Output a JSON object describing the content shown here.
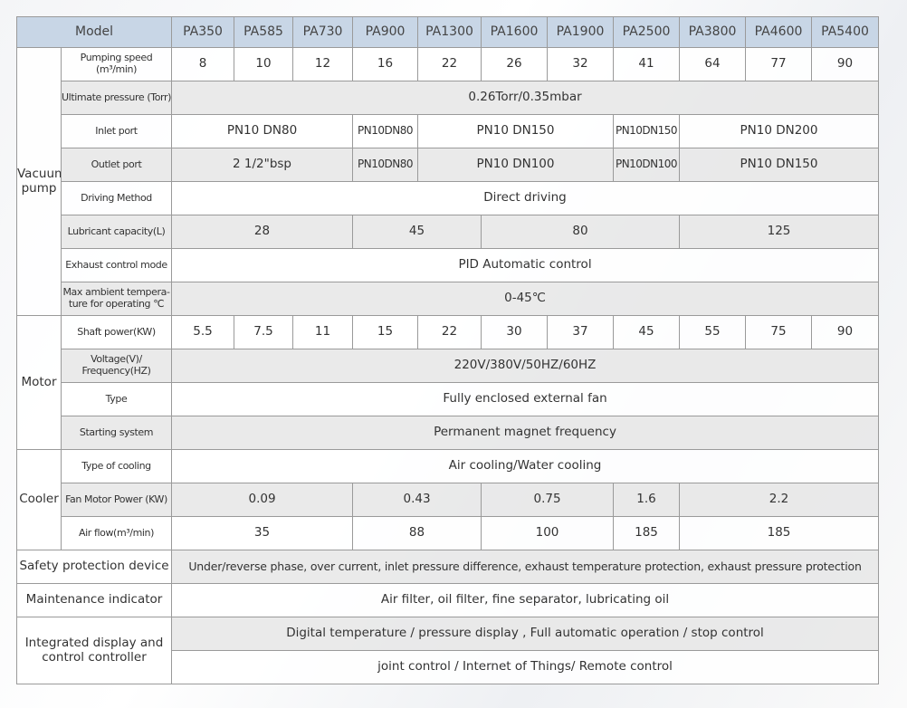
{
  "header": {
    "model_label": "Model",
    "models": [
      "PA350",
      "PA585",
      "PA730",
      "PA900",
      "PA1300",
      "PA1600",
      "PA1900",
      "PA2500",
      "PA3800",
      "PA4600",
      "PA5400"
    ]
  },
  "groups": [
    {
      "label": "Vacuum pump",
      "rows": [
        {
          "param": "Pumping speed (m³/min)",
          "cells": [
            {
              "v": "8",
              "span": 1
            },
            {
              "v": "10",
              "span": 1
            },
            {
              "v": "12",
              "span": 1
            },
            {
              "v": "16",
              "span": 1
            },
            {
              "v": "22",
              "span": 1
            },
            {
              "v": "26",
              "span": 1
            },
            {
              "v": "32",
              "span": 1
            },
            {
              "v": "41",
              "span": 1
            },
            {
              "v": "64",
              "span": 1
            },
            {
              "v": "77",
              "span": 1
            },
            {
              "v": "90",
              "span": 1
            }
          ]
        },
        {
          "param": "Ultimate pressure (Torr)",
          "cells": [
            {
              "v": "0.26Torr/0.35mbar",
              "span": 11
            }
          ]
        },
        {
          "param": "Inlet port",
          "cells": [
            {
              "v": "PN10 DN80",
              "span": 3
            },
            {
              "v": "PN10DN80",
              "span": 1,
              "small": true
            },
            {
              "v": "PN10 DN150",
              "span": 3
            },
            {
              "v": "PN10DN150",
              "span": 1,
              "small": true
            },
            {
              "v": "PN10 DN200",
              "span": 3
            }
          ]
        },
        {
          "param": "Outlet port",
          "cells": [
            {
              "v": "2 1/2\"bsp",
              "span": 3
            },
            {
              "v": "PN10DN80",
              "span": 1,
              "small": true
            },
            {
              "v": "PN10 DN100",
              "span": 3
            },
            {
              "v": "PN10DN100",
              "span": 1,
              "small": true
            },
            {
              "v": "PN10 DN150",
              "span": 3
            }
          ]
        },
        {
          "param": "Driving Method",
          "cells": [
            {
              "v": "Direct driving",
              "span": 11
            }
          ]
        },
        {
          "param": "Lubricant capacity(L)",
          "cells": [
            {
              "v": "28",
              "span": 3
            },
            {
              "v": "45",
              "span": 2
            },
            {
              "v": "80",
              "span": 3
            },
            {
              "v": "125",
              "span": 3
            }
          ]
        },
        {
          "param": "Exhaust control mode",
          "cells": [
            {
              "v": "PID Automatic control",
              "span": 11
            }
          ]
        },
        {
          "param": "Max ambient tempera-ture for operating ℃",
          "cells": [
            {
              "v": "0-45℃",
              "span": 11
            }
          ]
        }
      ]
    },
    {
      "label": "Motor",
      "rows": [
        {
          "param": "Shaft power(KW)",
          "cells": [
            {
              "v": "5.5",
              "span": 1
            },
            {
              "v": "7.5",
              "span": 1
            },
            {
              "v": "11",
              "span": 1
            },
            {
              "v": "15",
              "span": 1
            },
            {
              "v": "22",
              "span": 1
            },
            {
              "v": "30",
              "span": 1
            },
            {
              "v": "37",
              "span": 1
            },
            {
              "v": "45",
              "span": 1
            },
            {
              "v": "55",
              "span": 1
            },
            {
              "v": "75",
              "span": 1
            },
            {
              "v": "90",
              "span": 1
            }
          ]
        },
        {
          "param": "Voltage(V)/ Frequency(HZ)",
          "cells": [
            {
              "v": "220V/380V/50HZ/60HZ",
              "span": 11
            }
          ]
        },
        {
          "param": "Type",
          "cells": [
            {
              "v": "Fully enclosed external fan",
              "span": 11
            }
          ]
        },
        {
          "param": "Starting system",
          "cells": [
            {
              "v": "Permanent magnet frequency",
              "span": 11
            }
          ]
        }
      ]
    },
    {
      "label": "Cooler",
      "rows": [
        {
          "param": "Type of cooling",
          "cells": [
            {
              "v": "Air cooling/Water cooling",
              "span": 11
            }
          ]
        },
        {
          "param": "Fan Motor Power (KW)",
          "cells": [
            {
              "v": "0.09",
              "span": 3
            },
            {
              "v": "0.43",
              "span": 2
            },
            {
              "v": "0.75",
              "span": 2
            },
            {
              "v": "1.6",
              "span": 1
            },
            {
              "v": "2.2",
              "span": 3
            }
          ]
        },
        {
          "param": "Air flow(m³/min)",
          "cells": [
            {
              "v": "35",
              "span": 3
            },
            {
              "v": "88",
              "span": 2
            },
            {
              "v": "100",
              "span": 2
            },
            {
              "v": "185",
              "span": 1
            },
            {
              "v": "185",
              "span": 3
            }
          ]
        }
      ]
    }
  ],
  "footer": [
    {
      "label": "Safety protection device",
      "values": [
        "Under/reverse phase, over current, inlet pressure difference, exhaust temperature protection, exhaust pressure protection"
      ]
    },
    {
      "label": "Maintenance indicator",
      "values": [
        "Air filter, oil filter, fine separator, lubricating oil"
      ]
    },
    {
      "label": "Integrated display and control controller",
      "values": [
        "Digital temperature /  pressure display  , Full automatic operation / stop control",
        "joint control / Internet of Things/ Remote control"
      ]
    }
  ],
  "colors": {
    "header_bg": "#c8d6e6",
    "row_grey": "#e8e8e8",
    "border": "#9a9a9a"
  }
}
